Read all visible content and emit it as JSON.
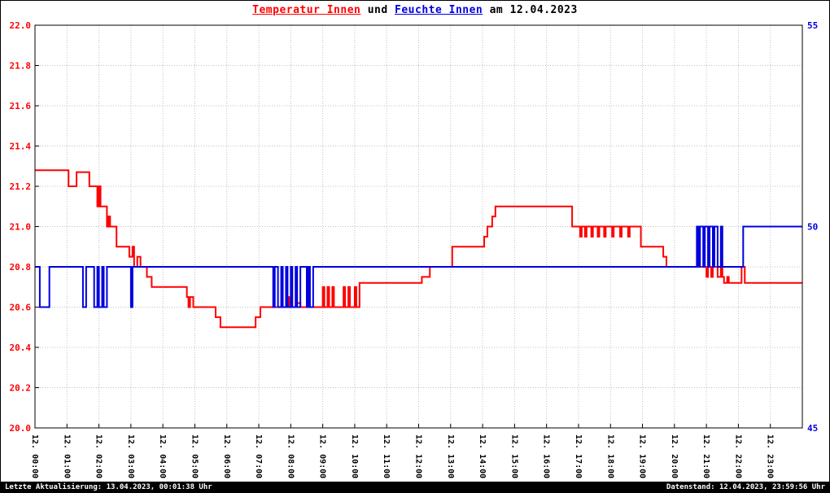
{
  "footer": {
    "left": "Letzte Aktualisierung: 13.04.2023, 00:01:38 Uhr",
    "right": "Datenstand: 12.04.2023, 23:59:56 Uhr"
  },
  "chart_data": {
    "type": "line",
    "title_parts": [
      {
        "text": "Temperatur Innen",
        "color": "#ff0000",
        "underline": true
      },
      {
        "text": " und ",
        "color": "#000000",
        "underline": false
      },
      {
        "text": "Feuchte Innen",
        "color": "#0000dd",
        "underline": true
      },
      {
        "text": " am 12.04.2023",
        "color": "#000000",
        "underline": false
      }
    ],
    "grid": {
      "color": "#c0c0c0",
      "style": "dotted"
    },
    "x": {
      "min": 0,
      "max": 24,
      "tick_hours": [
        0,
        1,
        2,
        3,
        4,
        5,
        6,
        7,
        8,
        9,
        10,
        11,
        12,
        13,
        14,
        15,
        16,
        17,
        18,
        19,
        20,
        21,
        22,
        23
      ],
      "tick_labels": [
        "12. 00:00",
        "12. 01:00",
        "12. 02:00",
        "12. 03:00",
        "12. 04:00",
        "12. 05:00",
        "12. 06:00",
        "12. 07:00",
        "12. 08:00",
        "12. 09:00",
        "12. 10:00",
        "12. 11:00",
        "12. 12:00",
        "12. 13:00",
        "12. 14:00",
        "12. 15:00",
        "12. 16:00",
        "12. 17:00",
        "12. 18:00",
        "12. 19:00",
        "12. 20:00",
        "12. 21:00",
        "12. 22:00",
        "12. 23:00"
      ]
    },
    "y_left": {
      "min": 20.0,
      "max": 22.0,
      "color": "#ff0000",
      "label": "Temperatur Innen",
      "tick_values": [
        22.0,
        21.8,
        21.6,
        21.4,
        21.2,
        21.0,
        20.8,
        20.6,
        20.4,
        20.2,
        20.0
      ],
      "tick_labels": [
        "22.0",
        "21.8",
        "21.6",
        "21.4",
        "21.2",
        "21.0",
        "20.8",
        "20.6",
        "20.4",
        "20.2",
        "20.0"
      ]
    },
    "y_right": {
      "min": 45,
      "max": 55,
      "color": "#0000dd",
      "label": "Feuchte Innen",
      "tick_values": [
        55,
        50,
        45
      ],
      "tick_labels": [
        "55",
        "50",
        "45"
      ]
    },
    "series": [
      {
        "name": "Temperatur Innen",
        "color": "#ff0000",
        "axis": "left",
        "interpolation": "step-after",
        "points": [
          [
            0,
            21.28
          ],
          [
            1.05,
            21.2
          ],
          [
            1.3,
            21.27
          ],
          [
            1.7,
            21.2
          ],
          [
            1.95,
            21.1
          ],
          [
            2.0,
            21.2
          ],
          [
            2.05,
            21.1
          ],
          [
            2.25,
            21.0
          ],
          [
            2.3,
            21.05
          ],
          [
            2.35,
            21.0
          ],
          [
            2.55,
            20.9
          ],
          [
            2.95,
            20.85
          ],
          [
            3.05,
            20.9
          ],
          [
            3.1,
            20.8
          ],
          [
            3.2,
            20.85
          ],
          [
            3.3,
            20.8
          ],
          [
            3.5,
            20.75
          ],
          [
            3.65,
            20.7
          ],
          [
            4.75,
            20.65
          ],
          [
            4.8,
            20.6
          ],
          [
            4.85,
            20.65
          ],
          [
            4.95,
            20.6
          ],
          [
            5.65,
            20.55
          ],
          [
            5.8,
            20.5
          ],
          [
            6.9,
            20.55
          ],
          [
            7.05,
            20.6
          ],
          [
            7.9,
            20.65
          ],
          [
            7.95,
            20.6
          ],
          [
            8.2,
            20.62
          ],
          [
            8.3,
            20.6
          ],
          [
            8.5,
            20.62
          ],
          [
            8.55,
            20.6
          ],
          [
            9.0,
            20.7
          ],
          [
            9.05,
            20.6
          ],
          [
            9.15,
            20.7
          ],
          [
            9.2,
            20.6
          ],
          [
            9.3,
            20.7
          ],
          [
            9.35,
            20.6
          ],
          [
            9.65,
            20.7
          ],
          [
            9.7,
            20.6
          ],
          [
            9.8,
            20.7
          ],
          [
            9.85,
            20.6
          ],
          [
            10.0,
            20.7
          ],
          [
            10.05,
            20.6
          ],
          [
            10.15,
            20.72
          ],
          [
            12.1,
            20.75
          ],
          [
            12.35,
            20.8
          ],
          [
            13.05,
            20.9
          ],
          [
            14.05,
            20.95
          ],
          [
            14.15,
            21.0
          ],
          [
            14.3,
            21.05
          ],
          [
            14.4,
            21.1
          ],
          [
            16.8,
            21.0
          ],
          [
            17.05,
            20.95
          ],
          [
            17.1,
            21.0
          ],
          [
            17.2,
            20.95
          ],
          [
            17.25,
            21.0
          ],
          [
            17.4,
            20.95
          ],
          [
            17.45,
            21.0
          ],
          [
            17.6,
            20.95
          ],
          [
            17.65,
            21.0
          ],
          [
            17.8,
            20.95
          ],
          [
            17.85,
            21.0
          ],
          [
            18.05,
            20.95
          ],
          [
            18.1,
            21.0
          ],
          [
            18.3,
            20.95
          ],
          [
            18.35,
            21.0
          ],
          [
            18.55,
            20.95
          ],
          [
            18.6,
            21.0
          ],
          [
            18.95,
            20.9
          ],
          [
            19.65,
            20.85
          ],
          [
            19.75,
            20.8
          ],
          [
            21.0,
            20.75
          ],
          [
            21.05,
            20.8
          ],
          [
            21.15,
            20.75
          ],
          [
            21.2,
            20.8
          ],
          [
            21.35,
            20.75
          ],
          [
            21.45,
            20.8
          ],
          [
            21.5,
            20.75
          ],
          [
            21.55,
            20.72
          ],
          [
            21.65,
            20.75
          ],
          [
            21.7,
            20.72
          ],
          [
            22.1,
            20.8
          ],
          [
            22.2,
            20.72
          ],
          [
            24,
            20.72
          ]
        ]
      },
      {
        "name": "Feuchte Innen",
        "color": "#0000dd",
        "axis": "right",
        "interpolation": "step-after",
        "points": [
          [
            0,
            49
          ],
          [
            0.15,
            48
          ],
          [
            0.45,
            49
          ],
          [
            1.5,
            48
          ],
          [
            1.6,
            49
          ],
          [
            1.85,
            48
          ],
          [
            1.95,
            49
          ],
          [
            2.0,
            48
          ],
          [
            2.1,
            49
          ],
          [
            2.15,
            48
          ],
          [
            2.25,
            49
          ],
          [
            3.0,
            48
          ],
          [
            3.05,
            49
          ],
          [
            7.45,
            48
          ],
          [
            7.5,
            49
          ],
          [
            7.6,
            48
          ],
          [
            7.7,
            49
          ],
          [
            7.75,
            48
          ],
          [
            7.85,
            49
          ],
          [
            7.9,
            48
          ],
          [
            8.0,
            49
          ],
          [
            8.05,
            48
          ],
          [
            8.15,
            49
          ],
          [
            8.2,
            48
          ],
          [
            8.3,
            49
          ],
          [
            8.5,
            48
          ],
          [
            8.55,
            49
          ],
          [
            8.6,
            48
          ],
          [
            8.7,
            49
          ],
          [
            20.7,
            50
          ],
          [
            20.75,
            49
          ],
          [
            20.8,
            50
          ],
          [
            20.9,
            49
          ],
          [
            20.95,
            50
          ],
          [
            21.05,
            49
          ],
          [
            21.1,
            50
          ],
          [
            21.2,
            49
          ],
          [
            21.25,
            50
          ],
          [
            21.35,
            49
          ],
          [
            21.45,
            50
          ],
          [
            21.5,
            49
          ],
          [
            22.15,
            50
          ],
          [
            24,
            50
          ]
        ]
      }
    ]
  }
}
